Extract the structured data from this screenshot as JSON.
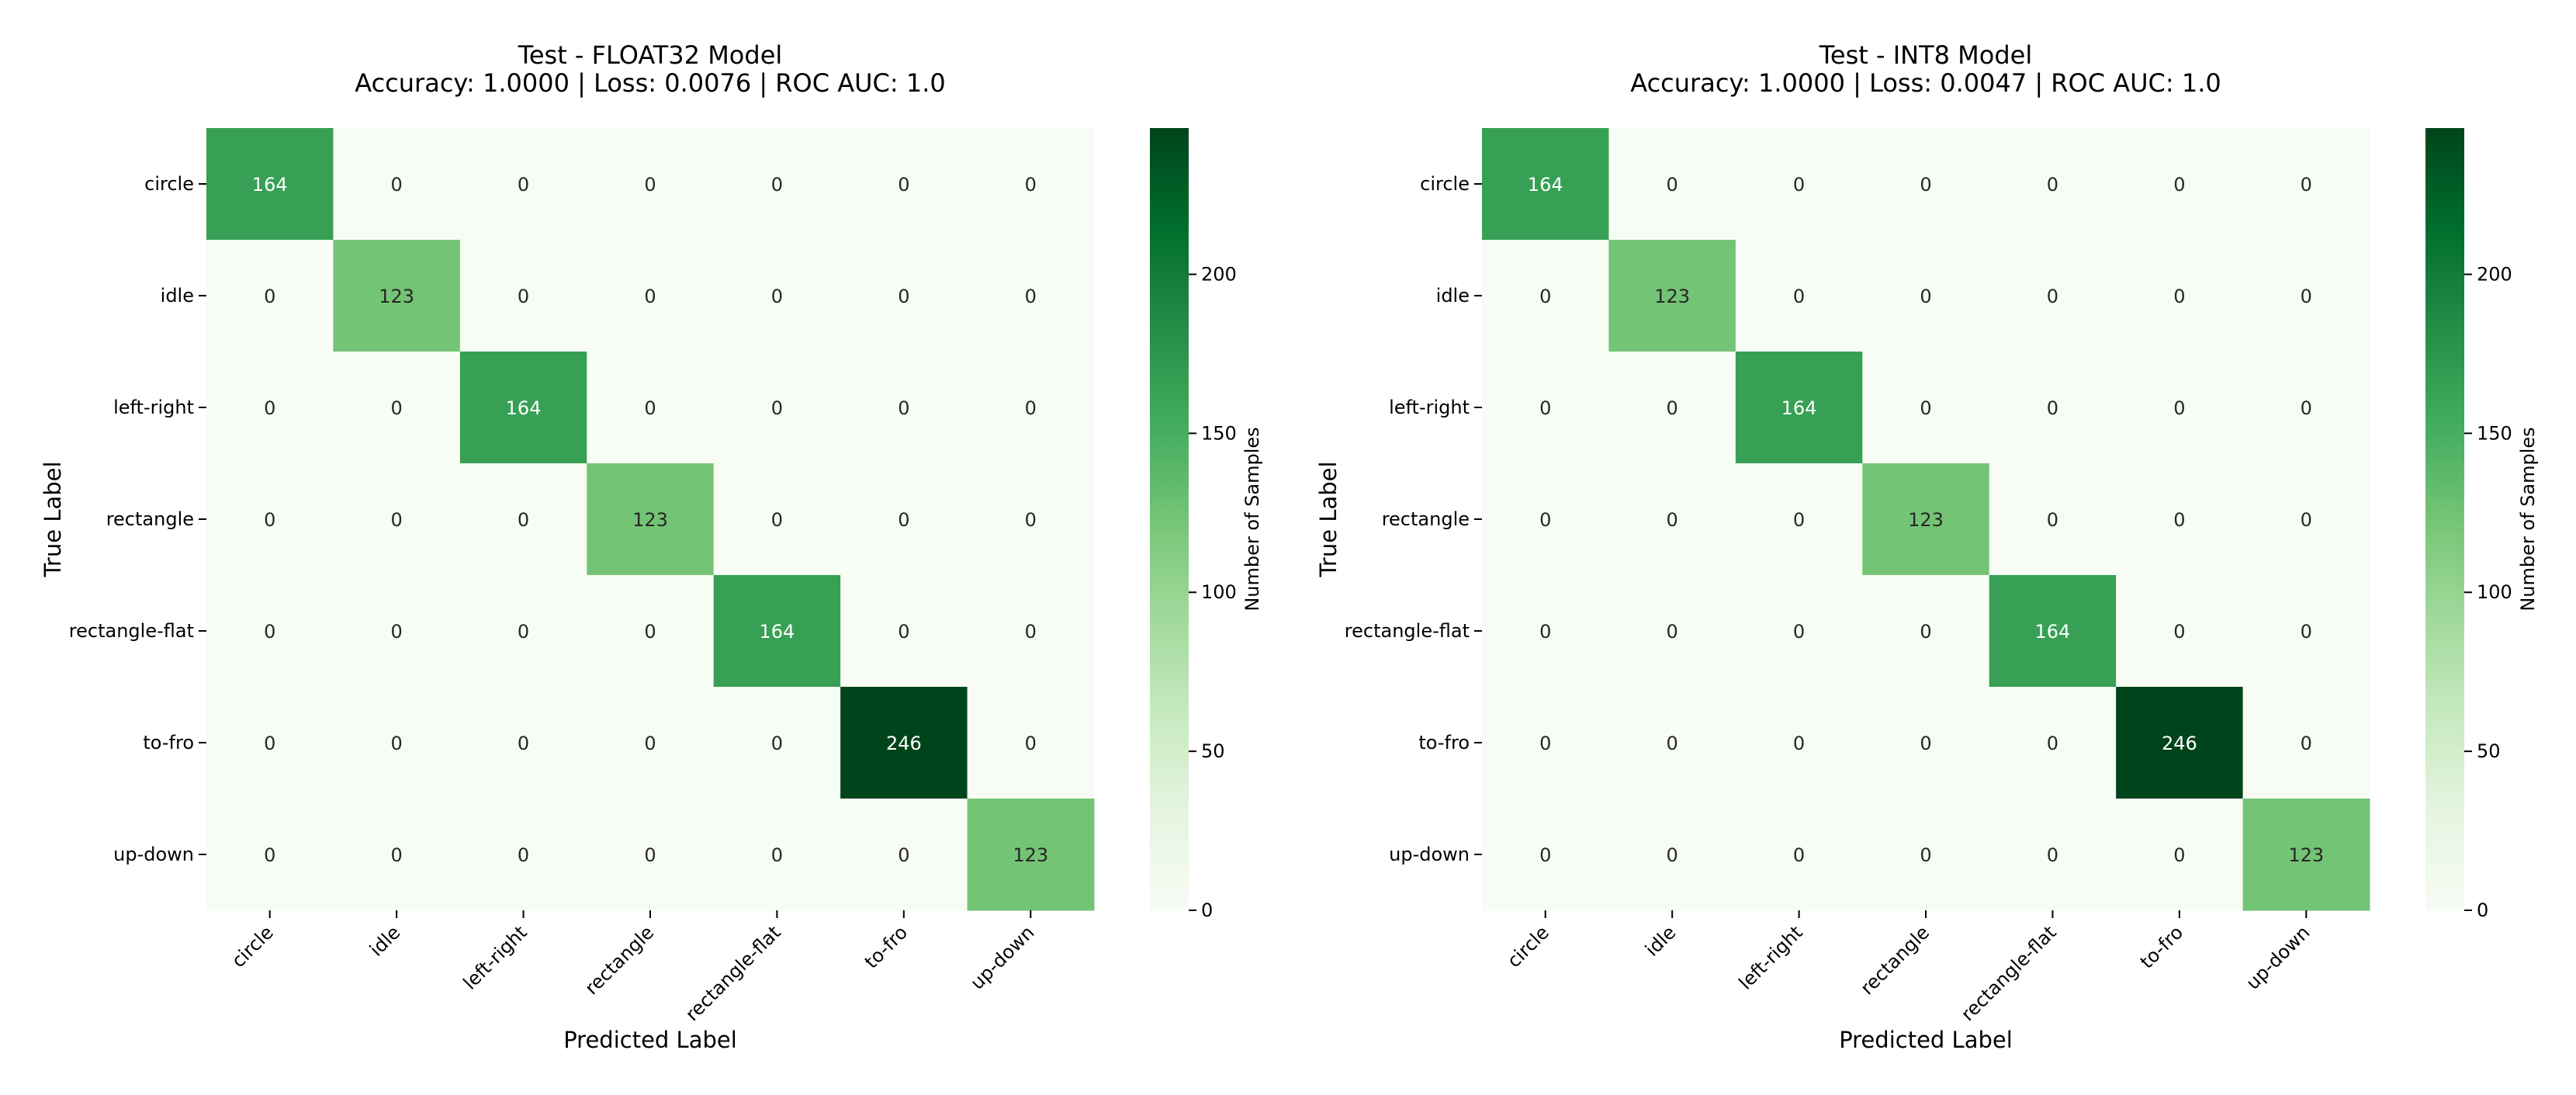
{
  "figure": {
    "panels": [
      {
        "title_line1": "Test - FLOAT32 Model",
        "title_line2": "Accuracy: 1.0000 | Loss: 0.0076 | ROC AUC: 1.0"
      },
      {
        "title_line1": "Test - INT8 Model",
        "title_line2": "Accuracy: 1.0000 | Loss: 0.0047 | ROC AUC: 1.0"
      }
    ]
  },
  "colors": {
    "cmap_low": "#f7fcf5",
    "cmap_stops": [
      "#f7fcf5",
      "#e5f5e0",
      "#c7e9c0",
      "#a1d99b",
      "#74c476",
      "#41ab5d",
      "#238b45",
      "#006d2c",
      "#00441b"
    ],
    "text_dark": "#262626",
    "text_light": "#ffffff"
  },
  "chart_data": [
    {
      "type": "heatmap",
      "title": "Test - FLOAT32 Model\nAccuracy: 1.0000 | Loss: 0.0076 | ROC AUC: 1.0",
      "xlabel": "Predicted Label",
      "ylabel": "True Label",
      "x_categories": [
        "circle",
        "idle",
        "left-right",
        "rectangle",
        "rectangle-flat",
        "to-fro",
        "up-down"
      ],
      "y_categories": [
        "circle",
        "idle",
        "left-right",
        "rectangle",
        "rectangle-flat",
        "to-fro",
        "up-down"
      ],
      "matrix": [
        [
          164,
          0,
          0,
          0,
          0,
          0,
          0
        ],
        [
          0,
          123,
          0,
          0,
          0,
          0,
          0
        ],
        [
          0,
          0,
          164,
          0,
          0,
          0,
          0
        ],
        [
          0,
          0,
          0,
          123,
          0,
          0,
          0
        ],
        [
          0,
          0,
          0,
          0,
          164,
          0,
          0
        ],
        [
          0,
          0,
          0,
          0,
          0,
          246,
          0
        ],
        [
          0,
          0,
          0,
          0,
          0,
          0,
          123
        ]
      ],
      "colorbar": {
        "label": "Number of Samples",
        "vmin": 0,
        "vmax": 246,
        "ticks": [
          0,
          50,
          100,
          150,
          200
        ]
      }
    },
    {
      "type": "heatmap",
      "title": "Test - INT8 Model\nAccuracy: 1.0000 | Loss: 0.0047 | ROC AUC: 1.0",
      "xlabel": "Predicted Label",
      "ylabel": "True Label",
      "x_categories": [
        "circle",
        "idle",
        "left-right",
        "rectangle",
        "rectangle-flat",
        "to-fro",
        "up-down"
      ],
      "y_categories": [
        "circle",
        "idle",
        "left-right",
        "rectangle",
        "rectangle-flat",
        "to-fro",
        "up-down"
      ],
      "matrix": [
        [
          164,
          0,
          0,
          0,
          0,
          0,
          0
        ],
        [
          0,
          123,
          0,
          0,
          0,
          0,
          0
        ],
        [
          0,
          0,
          164,
          0,
          0,
          0,
          0
        ],
        [
          0,
          0,
          0,
          123,
          0,
          0,
          0
        ],
        [
          0,
          0,
          0,
          0,
          164,
          0,
          0
        ],
        [
          0,
          0,
          0,
          0,
          0,
          246,
          0
        ],
        [
          0,
          0,
          0,
          0,
          0,
          0,
          123
        ]
      ],
      "colorbar": {
        "label": "Number of Samples",
        "vmin": 0,
        "vmax": 246,
        "ticks": [
          0,
          50,
          100,
          150,
          200
        ]
      }
    }
  ]
}
